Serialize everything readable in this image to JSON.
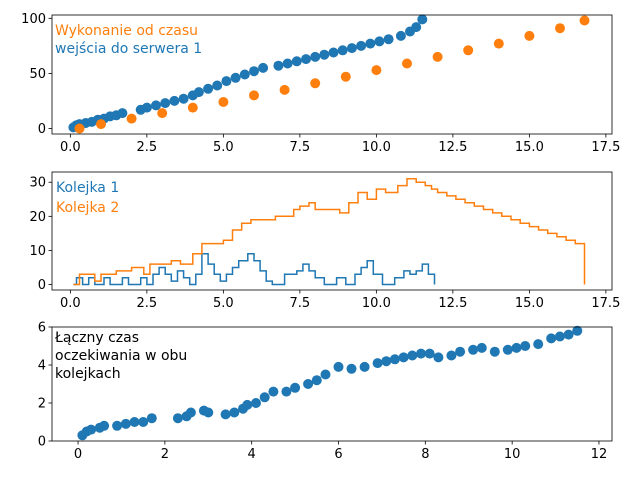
{
  "colors": {
    "blue": "#1f77b4",
    "orange": "#ff7f0e"
  },
  "chart_data": [
    {
      "type": "scatter",
      "annotations": [
        "Wykonanie od czasu",
        "wejścia do serwera 1"
      ],
      "xlim": [
        -0.6,
        17.7
      ],
      "ylim": [
        -5,
        103
      ],
      "x_ticks": [
        "0.0",
        "2.5",
        "5.0",
        "7.5",
        "10.0",
        "12.5",
        "15.0",
        "17.5"
      ],
      "y_ticks": [
        "0",
        "50",
        "100"
      ],
      "grid": false,
      "series": [
        {
          "color": "blue",
          "points": [
            [
              0.1,
              1
            ],
            [
              0.2,
              3
            ],
            [
              0.3,
              4
            ],
            [
              0.5,
              5
            ],
            [
              0.7,
              6
            ],
            [
              0.9,
              8
            ],
            [
              1.1,
              9
            ],
            [
              1.3,
              11
            ],
            [
              1.5,
              12
            ],
            [
              1.7,
              14
            ],
            [
              2.3,
              17
            ],
            [
              2.5,
              19
            ],
            [
              2.8,
              21
            ],
            [
              3.1,
              23
            ],
            [
              3.4,
              25
            ],
            [
              3.7,
              27
            ],
            [
              4.0,
              30
            ],
            [
              4.2,
              33
            ],
            [
              4.5,
              36
            ],
            [
              4.8,
              39
            ],
            [
              5.1,
              43
            ],
            [
              5.4,
              46
            ],
            [
              5.7,
              49
            ],
            [
              6.0,
              52
            ],
            [
              6.3,
              55
            ],
            [
              6.8,
              57
            ],
            [
              7.1,
              59
            ],
            [
              7.4,
              61
            ],
            [
              7.7,
              63
            ],
            [
              8.0,
              65
            ],
            [
              8.3,
              67
            ],
            [
              8.6,
              69
            ],
            [
              8.9,
              71
            ],
            [
              9.2,
              73
            ],
            [
              9.5,
              75
            ],
            [
              9.8,
              77
            ],
            [
              10.1,
              79
            ],
            [
              10.4,
              81
            ],
            [
              10.8,
              84
            ],
            [
              11.1,
              88
            ],
            [
              11.3,
              92
            ],
            [
              11.5,
              99
            ]
          ]
        },
        {
          "color": "orange",
          "points": [
            [
              0.3,
              0
            ],
            [
              1.0,
              4
            ],
            [
              2.0,
              9
            ],
            [
              3.0,
              14
            ],
            [
              4.0,
              19
            ],
            [
              5.0,
              24
            ],
            [
              6.0,
              30
            ],
            [
              7.0,
              35
            ],
            [
              8.0,
              41
            ],
            [
              9.0,
              47
            ],
            [
              10.0,
              53
            ],
            [
              11.0,
              59
            ],
            [
              12.0,
              65
            ],
            [
              13.0,
              71
            ],
            [
              14.0,
              77
            ],
            [
              15.0,
              84
            ],
            [
              16.0,
              91
            ],
            [
              16.8,
              98
            ]
          ]
        }
      ]
    },
    {
      "type": "line",
      "legend": [
        "Kolejka 1",
        "Kolejka 2"
      ],
      "xlim": [
        -0.6,
        17.7
      ],
      "ylim": [
        -1.6,
        33
      ],
      "x_ticks": [
        "0.0",
        "2.5",
        "5.0",
        "7.5",
        "10.0",
        "12.5",
        "15.0",
        "17.5"
      ],
      "y_ticks": [
        "0",
        "10",
        "20",
        "30"
      ],
      "grid": false,
      "series": [
        {
          "name": "Kolejka 1",
          "color": "blue",
          "step": true,
          "points": [
            [
              0.1,
              0
            ],
            [
              0.2,
              2
            ],
            [
              0.4,
              0
            ],
            [
              0.6,
              2
            ],
            [
              0.8,
              0
            ],
            [
              1.1,
              2
            ],
            [
              1.3,
              0
            ],
            [
              1.7,
              2
            ],
            [
              1.9,
              0
            ],
            [
              2.3,
              2
            ],
            [
              2.5,
              0
            ],
            [
              2.7,
              3
            ],
            [
              2.9,
              5
            ],
            [
              3.1,
              3
            ],
            [
              3.3,
              1
            ],
            [
              3.5,
              4
            ],
            [
              3.7,
              2
            ],
            [
              3.9,
              0
            ],
            [
              4.1,
              3
            ],
            [
              4.3,
              9
            ],
            [
              4.5,
              6
            ],
            [
              4.7,
              3
            ],
            [
              4.9,
              1
            ],
            [
              5.1,
              3
            ],
            [
              5.3,
              5
            ],
            [
              5.5,
              7
            ],
            [
              5.8,
              9
            ],
            [
              6.0,
              7
            ],
            [
              6.2,
              4
            ],
            [
              6.4,
              1
            ],
            [
              6.6,
              0
            ],
            [
              7.0,
              3
            ],
            [
              7.4,
              4
            ],
            [
              7.6,
              6
            ],
            [
              7.8,
              4
            ],
            [
              8.0,
              2
            ],
            [
              8.3,
              0
            ],
            [
              8.7,
              2
            ],
            [
              9.0,
              0
            ],
            [
              9.3,
              3
            ],
            [
              9.5,
              5
            ],
            [
              9.7,
              7
            ],
            [
              9.9,
              3
            ],
            [
              10.2,
              0
            ],
            [
              10.6,
              2
            ],
            [
              10.9,
              4
            ],
            [
              11.1,
              3
            ],
            [
              11.3,
              4
            ],
            [
              11.5,
              6
            ],
            [
              11.7,
              3
            ],
            [
              11.9,
              0
            ]
          ]
        },
        {
          "name": "Kolejka 2",
          "color": "orange",
          "step": true,
          "points": [
            [
              0.1,
              0
            ],
            [
              0.3,
              3
            ],
            [
              0.8,
              1
            ],
            [
              1.0,
              3
            ],
            [
              1.5,
              4
            ],
            [
              2.0,
              5
            ],
            [
              2.4,
              3
            ],
            [
              2.6,
              6
            ],
            [
              3.3,
              7
            ],
            [
              3.6,
              6
            ],
            [
              4.0,
              9
            ],
            [
              4.3,
              12
            ],
            [
              5.0,
              13
            ],
            [
              5.3,
              16
            ],
            [
              5.6,
              18
            ],
            [
              5.9,
              19
            ],
            [
              6.7,
              20
            ],
            [
              7.3,
              22
            ],
            [
              7.5,
              23
            ],
            [
              7.8,
              24
            ],
            [
              8.0,
              22
            ],
            [
              8.8,
              21
            ],
            [
              9.1,
              24
            ],
            [
              9.4,
              27
            ],
            [
              9.7,
              25
            ],
            [
              10.0,
              28
            ],
            [
              10.3,
              27
            ],
            [
              10.7,
              29
            ],
            [
              11.0,
              31
            ],
            [
              11.3,
              30
            ],
            [
              11.6,
              29
            ],
            [
              11.8,
              28
            ],
            [
              12.0,
              27
            ],
            [
              12.3,
              26
            ],
            [
              12.6,
              25
            ],
            [
              12.9,
              24
            ],
            [
              13.2,
              23
            ],
            [
              13.5,
              22
            ],
            [
              13.8,
              21
            ],
            [
              14.1,
              20
            ],
            [
              14.4,
              19
            ],
            [
              14.7,
              18
            ],
            [
              15.0,
              17
            ],
            [
              15.3,
              16
            ],
            [
              15.6,
              15
            ],
            [
              15.9,
              14
            ],
            [
              16.2,
              13
            ],
            [
              16.5,
              12
            ],
            [
              16.8,
              0
            ]
          ]
        }
      ]
    },
    {
      "type": "scatter",
      "annotations": [
        "Łączny czas",
        "oczekiwania w obu",
        "kolejkach"
      ],
      "xlim": [
        -0.6,
        12.3
      ],
      "ylim": [
        0,
        6
      ],
      "x_ticks": [
        "0",
        "2",
        "4",
        "6",
        "8",
        "10",
        "12"
      ],
      "y_ticks": [
        "0",
        "2",
        "4",
        "6"
      ],
      "grid": false,
      "series": [
        {
          "color": "blue",
          "points": [
            [
              0.1,
              0.3
            ],
            [
              0.2,
              0.5
            ],
            [
              0.3,
              0.6
            ],
            [
              0.5,
              0.7
            ],
            [
              0.6,
              0.8
            ],
            [
              0.9,
              0.8
            ],
            [
              1.1,
              0.9
            ],
            [
              1.3,
              1.0
            ],
            [
              1.5,
              1.0
            ],
            [
              1.7,
              1.2
            ],
            [
              2.3,
              1.2
            ],
            [
              2.5,
              1.3
            ],
            [
              2.6,
              1.5
            ],
            [
              2.9,
              1.6
            ],
            [
              3.0,
              1.5
            ],
            [
              3.4,
              1.4
            ],
            [
              3.6,
              1.5
            ],
            [
              3.8,
              1.7
            ],
            [
              3.9,
              1.9
            ],
            [
              4.1,
              2.0
            ],
            [
              4.3,
              2.3
            ],
            [
              4.5,
              2.6
            ],
            [
              4.8,
              2.6
            ],
            [
              5.0,
              2.8
            ],
            [
              5.3,
              3.0
            ],
            [
              5.5,
              3.2
            ],
            [
              5.7,
              3.5
            ],
            [
              6.0,
              3.9
            ],
            [
              6.3,
              3.8
            ],
            [
              6.6,
              3.9
            ],
            [
              6.9,
              4.1
            ],
            [
              7.1,
              4.2
            ],
            [
              7.3,
              4.3
            ],
            [
              7.5,
              4.4
            ],
            [
              7.7,
              4.5
            ],
            [
              7.9,
              4.6
            ],
            [
              8.1,
              4.6
            ],
            [
              8.3,
              4.4
            ],
            [
              8.6,
              4.5
            ],
            [
              8.8,
              4.7
            ],
            [
              9.1,
              4.8
            ],
            [
              9.3,
              4.9
            ],
            [
              9.6,
              4.7
            ],
            [
              9.9,
              4.8
            ],
            [
              10.1,
              4.9
            ],
            [
              10.3,
              5.0
            ],
            [
              10.6,
              5.1
            ],
            [
              10.9,
              5.4
            ],
            [
              11.1,
              5.5
            ],
            [
              11.3,
              5.6
            ],
            [
              11.5,
              5.8
            ]
          ]
        }
      ]
    }
  ]
}
